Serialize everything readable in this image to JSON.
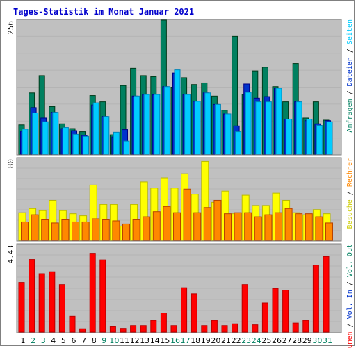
{
  "chart_data": {
    "title": "Tages-Statistik im Monat Januar 2021",
    "type": "bar",
    "categories": [
      "1",
      "2",
      "3",
      "4",
      "5",
      "6",
      "7",
      "8",
      "9",
      "10",
      "11",
      "12",
      "13",
      "14",
      "15",
      "16",
      "17",
      "18",
      "19",
      "20",
      "21",
      "22",
      "23",
      "24",
      "25",
      "26",
      "27",
      "28",
      "29",
      "30",
      "31"
    ],
    "weekend_days": [
      "2",
      "3",
      "9",
      "10",
      "16",
      "17",
      "23",
      "24",
      "30",
      "31"
    ],
    "panels": [
      {
        "id": "top",
        "ymax_label": "256",
        "ymax": 256,
        "series": [
          {
            "name": "Anfragen",
            "color": "#008060",
            "values": [
              56,
              117,
              150,
              91,
              58,
              49,
              43,
              112,
              100,
              37,
              131,
              164,
              150,
              148,
              256,
              128,
              146,
              133,
              136,
              111,
              84,
              225,
              114,
              159,
              166,
              129,
              100,
              173,
              69,
              100,
              65
            ]
          },
          {
            "name": "Dateien",
            "color": "#0033cc",
            "values": [
              44,
              89,
              69,
              80,
              49,
              45,
              36,
              94,
              72,
              33,
              47,
              111,
              114,
              114,
              129,
              155,
              114,
              101,
              117,
              95,
              77,
              54,
              134,
              107,
              110,
              126,
              67,
              100,
              64,
              58,
              64
            ]
          },
          {
            "name": "Seiten",
            "color": "#00ccff",
            "values": [
              48,
              79,
              62,
              80,
              51,
              38,
              34,
              98,
              72,
              42,
              25,
              111,
              114,
              114,
              129,
              161,
              114,
              101,
              117,
              95,
              77,
              43,
              118,
              100,
              100,
              126,
              67,
              100,
              67,
              55,
              62
            ]
          }
        ],
        "legend": [
          "Anfragen",
          " / ",
          "Dateien",
          " / ",
          "Seiten"
        ]
      },
      {
        "id": "mid",
        "ymax_label": "80",
        "ymax": 80,
        "series": [
          {
            "name": "Besuche",
            "color": "#ffff00",
            "values": [
              27,
              31,
              29,
              39,
              29,
              26,
              24,
              54,
              35,
              35,
              14,
              35,
              57,
              51,
              61,
              51,
              65,
              45,
              77,
              37,
              48,
              26,
              44,
              34,
              34,
              46,
              39,
              27,
              25,
              30,
              26
            ]
          },
          {
            "name": "Rechner",
            "color": "#ff8800",
            "values": [
              18,
              25,
              20,
              17,
              20,
              18,
              18,
              21,
              20,
              19,
              16,
              20,
              23,
              28,
              33,
              27,
              50,
              27,
              32,
              39,
              26,
              27,
              27,
              23,
              25,
              27,
              31,
              26,
              26,
              23,
              17
            ]
          }
        ],
        "legend": [
          "Besuche",
          " / ",
          "Rechner"
        ]
      },
      {
        "id": "bot",
        "ymax_label": "4.43",
        "ymax": 4.43,
        "series": [
          {
            "name": "Volumen",
            "color": "#ff0000",
            "values": [
              2.55,
              3.73,
              3.0,
              3.1,
              2.44,
              0.81,
              0.17,
              4.05,
              3.71,
              0.27,
              0.19,
              0.33,
              0.33,
              0.6,
              0.98,
              0.33,
              2.28,
              1.97,
              0.33,
              0.6,
              0.33,
              0.42,
              2.44,
              0.37,
              1.5,
              2.24,
              2.16,
              0.46,
              0.6,
              3.44,
              3.88
            ]
          }
        ],
        "legend": [
          "Volumen",
          " / ",
          "Vol. In",
          " / ",
          "Vol. Out"
        ]
      }
    ],
    "colors": {
      "bg": "#c0c0c0",
      "title": "#0000cc",
      "weekday": "#000000",
      "weekend": "#008060"
    }
  }
}
